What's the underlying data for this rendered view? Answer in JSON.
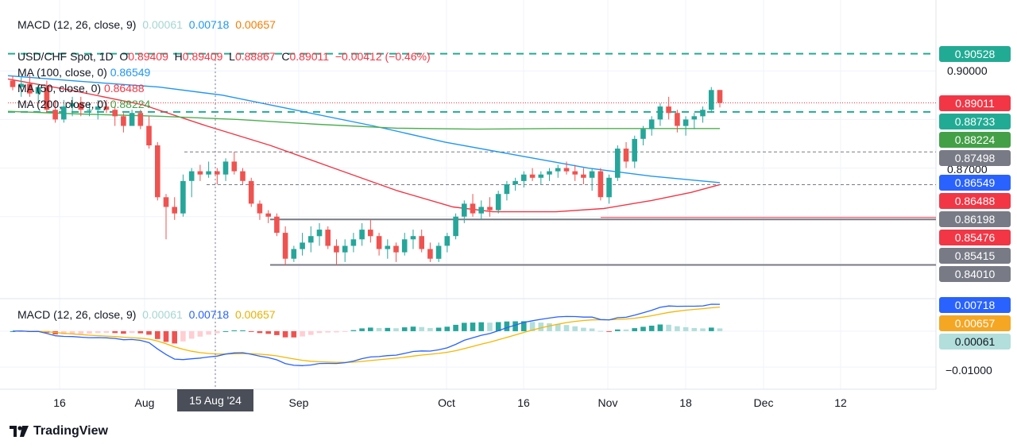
{
  "header": {
    "title": "MACD (12, 26, close, 9)",
    "v1": "0.00061",
    "v2": "0.00718",
    "v3": "0.00657"
  },
  "legend": {
    "symbol": "USD/CHF Spot, 1D",
    "o_label": "O",
    "o_val": "0.89409",
    "h_label": "H",
    "h_val": "0.89409",
    "l_label": "L",
    "l_val": "0.88867",
    "c_label": "C",
    "c_val": "0.89011",
    "change": "−0.00412 (−0.46%)",
    "ma100_label": "MA (100, close, 0)",
    "ma100_val": "0.86549",
    "ma50_label": "MA (50, close, 0)",
    "ma50_val": "0.86488",
    "ma200_label": "MA (200, close, 0)",
    "ma200_val": "0.88224"
  },
  "macd_legend": {
    "title": "MACD (12, 26, close, 9)",
    "hist": "0.00061",
    "macd": "0.00718",
    "signal": "0.00657"
  },
  "price_axis": [
    "0.90000",
    "0.87000"
  ],
  "macd_axis": [
    "−0.01000"
  ],
  "price_tags": [
    {
      "text": "0.90528",
      "color": "#22ab94",
      "value": 0.90528
    },
    {
      "text": "0.89011",
      "color": "#f23645",
      "value": 0.89011
    },
    {
      "text": "0.88733",
      "color": "#22ab94",
      "value": 0.88733
    },
    {
      "text": "0.88224",
      "color": "#43a047",
      "value": 0.88224
    },
    {
      "text": "0.87498",
      "color": "#787b86",
      "value": 0.87498
    },
    {
      "text": "0.86549",
      "color": "#2962ff",
      "value": 0.86549
    },
    {
      "text": "0.86488",
      "color": "#f23645",
      "value": 0.86488
    },
    {
      "text": "0.86198",
      "color": "#787b86",
      "value": 0.86198
    },
    {
      "text": "0.85476",
      "color": "#f23645",
      "value": 0.85476
    },
    {
      "text": "0.85415",
      "color": "#787b86",
      "value": 0.85415
    },
    {
      "text": "0.84010",
      "color": "#787b86",
      "value": 0.8401
    }
  ],
  "macd_tags": [
    {
      "text": "0.00718",
      "color": "#2962ff",
      "value": 0.00718
    },
    {
      "text": "0.00657",
      "color": "#f5a623",
      "value": 0.00657
    },
    {
      "text": "0.00061",
      "color": "#b2dfdb",
      "value": 0.00061
    }
  ],
  "dates": [
    "16",
    "Aug",
    "15 Aug '24",
    "Sep",
    "Oct",
    "16",
    "Nov",
    "18",
    "Dec",
    "12"
  ],
  "brand": "TradingView",
  "colors": {
    "up": "#26a69a",
    "down": "#ef5350",
    "ma100": "#2196f3",
    "ma50": "#f23645",
    "ma200": "#4caf50",
    "macd": "#2962ff",
    "signal": "#f5b700"
  },
  "chart_data": {
    "type": "candlestick",
    "symbol": "USD/CHF Spot",
    "timeframe": "1D",
    "x_range": [
      "2024-07-08",
      "2024-11-22"
    ],
    "price_ylim": [
      0.839,
      0.9052
    ],
    "ohlc_approx": [
      [
        0.897,
        0.8985,
        0.894,
        0.895
      ],
      [
        0.895,
        0.898,
        0.892,
        0.896
      ],
      [
        0.896,
        0.899,
        0.892,
        0.893
      ],
      [
        0.893,
        0.896,
        0.89,
        0.895
      ],
      [
        0.895,
        0.897,
        0.887,
        0.888
      ],
      [
        0.888,
        0.891,
        0.884,
        0.885
      ],
      [
        0.885,
        0.891,
        0.884,
        0.889
      ],
      [
        0.889,
        0.892,
        0.886,
        0.89
      ],
      [
        0.89,
        0.892,
        0.886,
        0.888
      ],
      [
        0.888,
        0.89,
        0.886,
        0.888
      ],
      [
        0.888,
        0.891,
        0.885,
        0.889
      ],
      [
        0.889,
        0.891,
        0.887,
        0.888
      ],
      [
        0.888,
        0.889,
        0.883,
        0.886
      ],
      [
        0.886,
        0.887,
        0.881,
        0.883
      ],
      [
        0.883,
        0.888,
        0.883,
        0.887
      ],
      [
        0.887,
        0.888,
        0.882,
        0.883
      ],
      [
        0.883,
        0.886,
        0.876,
        0.877
      ],
      [
        0.877,
        0.878,
        0.86,
        0.861
      ],
      [
        0.861,
        0.862,
        0.848,
        0.858
      ],
      [
        0.858,
        0.861,
        0.854,
        0.856
      ],
      [
        0.856,
        0.868,
        0.855,
        0.866
      ],
      [
        0.866,
        0.87,
        0.861,
        0.869
      ],
      [
        0.869,
        0.871,
        0.866,
        0.868
      ],
      [
        0.868,
        0.872,
        0.867,
        0.869
      ],
      [
        0.869,
        0.87,
        0.865,
        0.868
      ],
      [
        0.868,
        0.873,
        0.866,
        0.872
      ],
      [
        0.872,
        0.875,
        0.868,
        0.869
      ],
      [
        0.869,
        0.87,
        0.865,
        0.866
      ],
      [
        0.866,
        0.867,
        0.858,
        0.859
      ],
      [
        0.859,
        0.86,
        0.854,
        0.856
      ],
      [
        0.856,
        0.857,
        0.853,
        0.855
      ],
      [
        0.855,
        0.856,
        0.849,
        0.85
      ],
      [
        0.85,
        0.852,
        0.84,
        0.842
      ],
      [
        0.842,
        0.846,
        0.841,
        0.845
      ],
      [
        0.845,
        0.85,
        0.843,
        0.847
      ],
      [
        0.847,
        0.852,
        0.844,
        0.849
      ],
      [
        0.849,
        0.853,
        0.846,
        0.851
      ],
      [
        0.851,
        0.852,
        0.845,
        0.846
      ],
      [
        0.846,
        0.848,
        0.84,
        0.844
      ],
      [
        0.844,
        0.848,
        0.841,
        0.846
      ],
      [
        0.846,
        0.85,
        0.844,
        0.848
      ],
      [
        0.848,
        0.853,
        0.846,
        0.851
      ],
      [
        0.851,
        0.854,
        0.847,
        0.849
      ],
      [
        0.849,
        0.85,
        0.843,
        0.845
      ],
      [
        0.845,
        0.848,
        0.842,
        0.846
      ],
      [
        0.846,
        0.847,
        0.841,
        0.844
      ],
      [
        0.844,
        0.85,
        0.843,
        0.848
      ],
      [
        0.848,
        0.851,
        0.845,
        0.849
      ],
      [
        0.849,
        0.851,
        0.844,
        0.845
      ],
      [
        0.845,
        0.847,
        0.841,
        0.842
      ],
      [
        0.842,
        0.847,
        0.841,
        0.846
      ],
      [
        0.846,
        0.85,
        0.844,
        0.849
      ],
      [
        0.849,
        0.856,
        0.848,
        0.855
      ],
      [
        0.855,
        0.86,
        0.853,
        0.859
      ],
      [
        0.859,
        0.862,
        0.855,
        0.856
      ],
      [
        0.856,
        0.86,
        0.854,
        0.858
      ],
      [
        0.858,
        0.861,
        0.855,
        0.857
      ],
      [
        0.857,
        0.863,
        0.856,
        0.862
      ],
      [
        0.862,
        0.866,
        0.86,
        0.865
      ],
      [
        0.865,
        0.867,
        0.863,
        0.866
      ],
      [
        0.866,
        0.869,
        0.864,
        0.868
      ],
      [
        0.868,
        0.87,
        0.866,
        0.867
      ],
      [
        0.867,
        0.869,
        0.865,
        0.868
      ],
      [
        0.868,
        0.87,
        0.866,
        0.869
      ],
      [
        0.869,
        0.871,
        0.867,
        0.87
      ],
      [
        0.87,
        0.872,
        0.868,
        0.869
      ],
      [
        0.869,
        0.871,
        0.866,
        0.868
      ],
      [
        0.868,
        0.87,
        0.865,
        0.867
      ],
      [
        0.867,
        0.87,
        0.863,
        0.869
      ],
      [
        0.869,
        0.87,
        0.86,
        0.861
      ],
      [
        0.861,
        0.868,
        0.859,
        0.867
      ],
      [
        0.867,
        0.877,
        0.866,
        0.876
      ],
      [
        0.876,
        0.878,
        0.87,
        0.872
      ],
      [
        0.872,
        0.88,
        0.87,
        0.879
      ],
      [
        0.879,
        0.883,
        0.877,
        0.882
      ],
      [
        0.882,
        0.886,
        0.88,
        0.885
      ],
      [
        0.885,
        0.89,
        0.883,
        0.889
      ],
      [
        0.889,
        0.892,
        0.885,
        0.887
      ],
      [
        0.887,
        0.888,
        0.881,
        0.883
      ],
      [
        0.883,
        0.886,
        0.88,
        0.885
      ],
      [
        0.885,
        0.887,
        0.882,
        0.886
      ],
      [
        0.886,
        0.889,
        0.884,
        0.888
      ],
      [
        0.888,
        0.895,
        0.887,
        0.8941
      ],
      [
        0.8941,
        0.8941,
        0.8887,
        0.8901
      ]
    ],
    "macd_ylim": [
      -0.0135,
      0.0075
    ]
  }
}
